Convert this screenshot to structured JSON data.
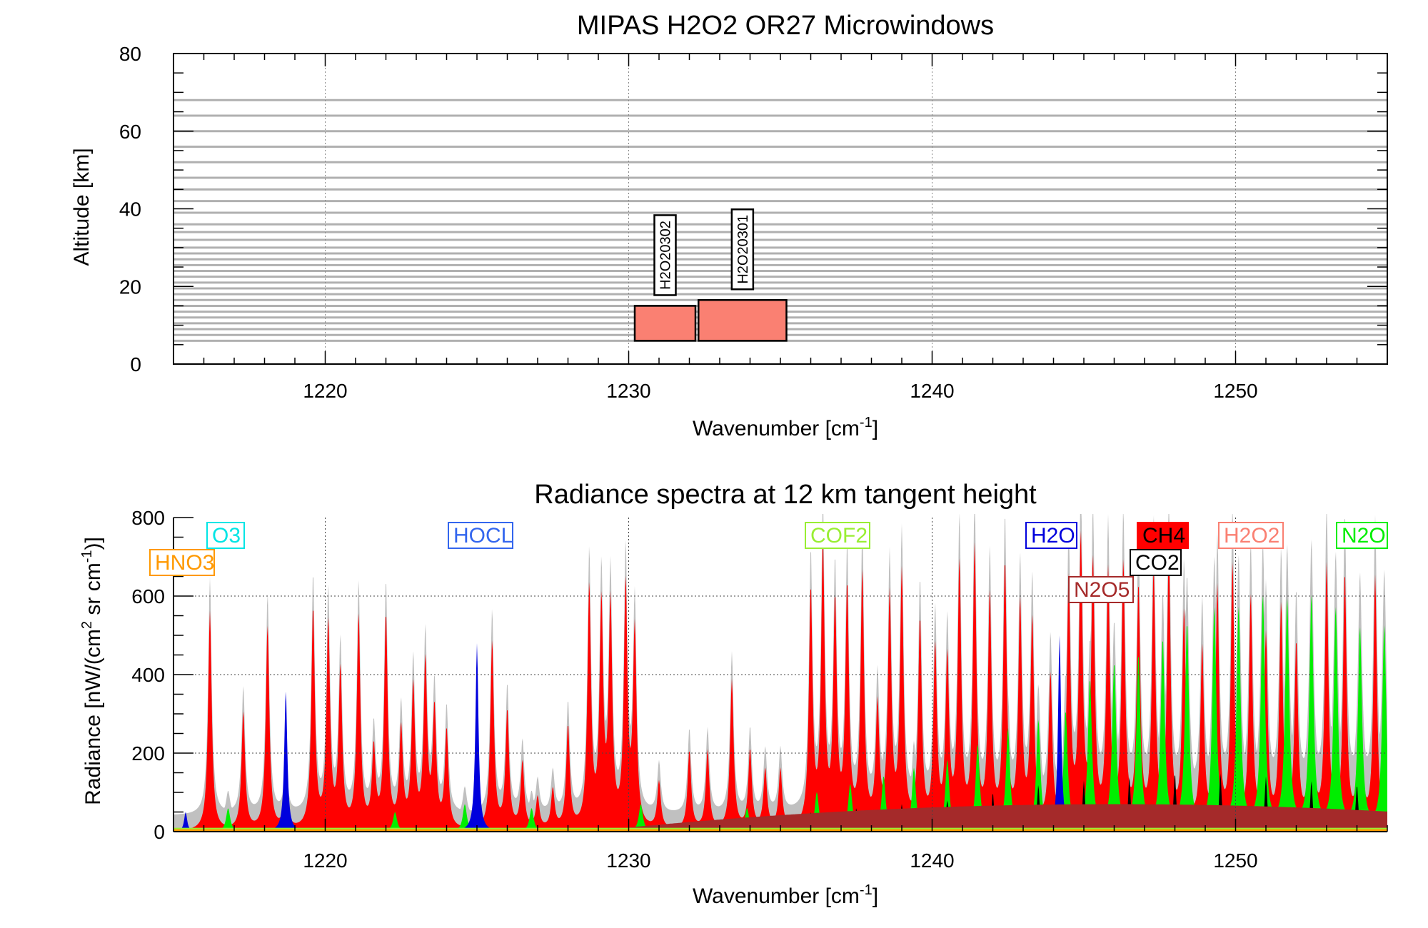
{
  "chart_data": [
    {
      "type": "bar",
      "title": "MIPAS H2O2 OR27 Microwindows",
      "xlabel_main": "Wavenumber [cm",
      "xlabel_sup": "-1",
      "xlabel_tail": "]",
      "ylabel": "Altitude [km]",
      "xlim": [
        1215,
        1255
      ],
      "ylim": [
        0,
        80
      ],
      "xticks": [
        "1220",
        "1230",
        "1240",
        "1250"
      ],
      "yticks": [
        "0",
        "20",
        "40",
        "60",
        "80"
      ],
      "tangent_heights_km": [
        6,
        7.5,
        9,
        10.5,
        12,
        13.5,
        15,
        16.5,
        18,
        19.5,
        21,
        22.5,
        24,
        25.5,
        27,
        28.5,
        30,
        32,
        34,
        36,
        39,
        42,
        45,
        48,
        52,
        56,
        60,
        64,
        68
      ],
      "microwindows": [
        {
          "name": "H2O20302",
          "x0": 1230.2,
          "x1": 1232.2,
          "alt_min": 6,
          "alt_max": 15
        },
        {
          "name": "H2O20301",
          "x0": 1232.3,
          "x1": 1235.2,
          "alt_min": 6,
          "alt_max": 16.5
        }
      ],
      "bar_color": "#fa8072"
    },
    {
      "type": "area",
      "title": "Radiance spectra at 12 km tangent height",
      "xlabel_main": "Wavenumber [cm",
      "xlabel_sup": "-1",
      "xlabel_tail": "]",
      "ylabel_a": "Radiance [nW/(cm",
      "ylabel_sup1": "2",
      "ylabel_b": " sr cm",
      "ylabel_sup2": "-1",
      "ylabel_c": ")]",
      "xlim": [
        1215,
        1255
      ],
      "ylim": [
        0,
        800
      ],
      "xticks": [
        "1220",
        "1230",
        "1240",
        "1250"
      ],
      "yticks": [
        "0",
        "200",
        "400",
        "600",
        "800"
      ],
      "grid": "dotted",
      "legend": [
        {
          "name": "O3",
          "color": "#00e5e5"
        },
        {
          "name": "HNO3",
          "color": "#ff9900"
        },
        {
          "name": "HOCL",
          "color": "#3366ee"
        },
        {
          "name": "COF2",
          "color": "#99ee33"
        },
        {
          "name": "H2O",
          "color": "#0000dd"
        },
        {
          "name": "CH4",
          "color": "#ff0000"
        },
        {
          "name": "H2O2",
          "color": "#fa8072"
        },
        {
          "name": "N2O",
          "color": "#00ee00"
        },
        {
          "name": "CO2",
          "color": "#000000"
        },
        {
          "name": "N2O5",
          "color": "#a52a2a"
        }
      ],
      "total_color": "#c0c0c0",
      "series": [
        {
          "name": "CH4",
          "color": "#ff0000",
          "peaks": [
            [
              1216.2,
              560
            ],
            [
              1217.3,
              300
            ],
            [
              1218.1,
              520
            ],
            [
              1218.7,
              120
            ],
            [
              1219.6,
              560
            ],
            [
              1220.1,
              520
            ],
            [
              1220.5,
              400
            ],
            [
              1221.1,
              540
            ],
            [
              1221.6,
              200
            ],
            [
              1222.0,
              540
            ],
            [
              1222.5,
              250
            ],
            [
              1222.9,
              360
            ],
            [
              1223.3,
              420
            ],
            [
              1223.6,
              300
            ],
            [
              1224.0,
              250
            ],
            [
              1225.5,
              480
            ],
            [
              1226.0,
              300
            ],
            [
              1226.5,
              170
            ],
            [
              1227.0,
              80
            ],
            [
              1227.5,
              100
            ],
            [
              1228.0,
              260
            ],
            [
              1228.7,
              610
            ],
            [
              1229.1,
              560
            ],
            [
              1229.4,
              560
            ],
            [
              1229.9,
              610
            ],
            [
              1230.2,
              500
            ],
            [
              1231.0,
              120
            ],
            [
              1232.0,
              200
            ],
            [
              1232.6,
              200
            ],
            [
              1233.4,
              380
            ],
            [
              1234.0,
              200
            ],
            [
              1234.5,
              150
            ],
            [
              1235.0,
              150
            ],
            [
              1236.0,
              600
            ],
            [
              1236.4,
              700
            ],
            [
              1236.8,
              560
            ],
            [
              1237.2,
              600
            ],
            [
              1237.7,
              640
            ],
            [
              1238.2,
              300
            ],
            [
              1238.6,
              580
            ],
            [
              1239.0,
              640
            ],
            [
              1239.6,
              520
            ],
            [
              1240.1,
              450
            ],
            [
              1240.5,
              420
            ],
            [
              1240.9,
              660
            ],
            [
              1241.4,
              700
            ],
            [
              1241.9,
              580
            ],
            [
              1242.4,
              660
            ],
            [
              1242.9,
              560
            ],
            [
              1243.3,
              520
            ],
            [
              1243.9,
              380
            ],
            [
              1244.5,
              620
            ],
            [
              1244.9,
              720
            ],
            [
              1245.3,
              660
            ],
            [
              1245.8,
              640
            ],
            [
              1246.3,
              660
            ],
            [
              1246.8,
              600
            ],
            [
              1247.3,
              640
            ],
            [
              1247.8,
              680
            ],
            [
              1248.3,
              540
            ],
            [
              1248.9,
              450
            ],
            [
              1249.4,
              600
            ],
            [
              1249.9,
              660
            ],
            [
              1250.5,
              580
            ],
            [
              1251.0,
              480
            ],
            [
              1251.5,
              560
            ],
            [
              1252.0,
              460
            ],
            [
              1252.5,
              500
            ],
            [
              1253.0,
              660
            ],
            [
              1253.6,
              640
            ],
            [
              1254.1,
              420
            ],
            [
              1254.6,
              640
            ]
          ]
        },
        {
          "name": "N2O",
          "color": "#00ee00",
          "peaks": [
            [
              1216.8,
              60
            ],
            [
              1222.3,
              50
            ],
            [
              1224.6,
              70
            ],
            [
              1226.8,
              60
            ],
            [
              1230.4,
              70
            ],
            [
              1233.9,
              60
            ],
            [
              1236.2,
              100
            ],
            [
              1237.3,
              120
            ],
            [
              1238.4,
              140
            ],
            [
              1239.4,
              160
            ],
            [
              1240.5,
              180
            ],
            [
              1241.5,
              220
            ],
            [
              1242.5,
              260
            ],
            [
              1243.5,
              280
            ],
            [
              1244.4,
              300
            ],
            [
              1245.2,
              380
            ],
            [
              1246.0,
              420
            ],
            [
              1246.8,
              440
            ],
            [
              1247.6,
              480
            ],
            [
              1248.4,
              520
            ],
            [
              1249.3,
              560
            ],
            [
              1250.1,
              560
            ],
            [
              1250.9,
              590
            ],
            [
              1251.7,
              580
            ],
            [
              1252.5,
              590
            ],
            [
              1253.3,
              560
            ],
            [
              1254.1,
              510
            ],
            [
              1254.9,
              520
            ]
          ]
        },
        {
          "name": "H2O",
          "color": "#0000dd",
          "peaks": [
            [
              1215.4,
              50
            ],
            [
              1218.7,
              360
            ],
            [
              1225.0,
              480
            ],
            [
              1244.2,
              500
            ]
          ]
        },
        {
          "name": "CO2",
          "color": "#000000",
          "peaks": [
            [
              1234.5,
              40
            ],
            [
              1236.0,
              50
            ],
            [
              1237.5,
              60
            ],
            [
              1239.0,
              70
            ],
            [
              1240.5,
              80
            ],
            [
              1242.0,
              100
            ],
            [
              1243.5,
              120
            ],
            [
              1245.0,
              130
            ],
            [
              1246.5,
              140
            ],
            [
              1248.0,
              150
            ],
            [
              1249.5,
              150
            ],
            [
              1251.0,
              140
            ],
            [
              1252.5,
              130
            ],
            [
              1254.0,
              120
            ]
          ]
        },
        {
          "name": "N2O5",
          "color": "#a52a2a",
          "band": {
            "x0": 1230.0,
            "center": 1246.0,
            "halfwidth": 16.0,
            "peak": 70,
            "floor_at": 1255.0,
            "floor": 30
          }
        }
      ]
    }
  ]
}
